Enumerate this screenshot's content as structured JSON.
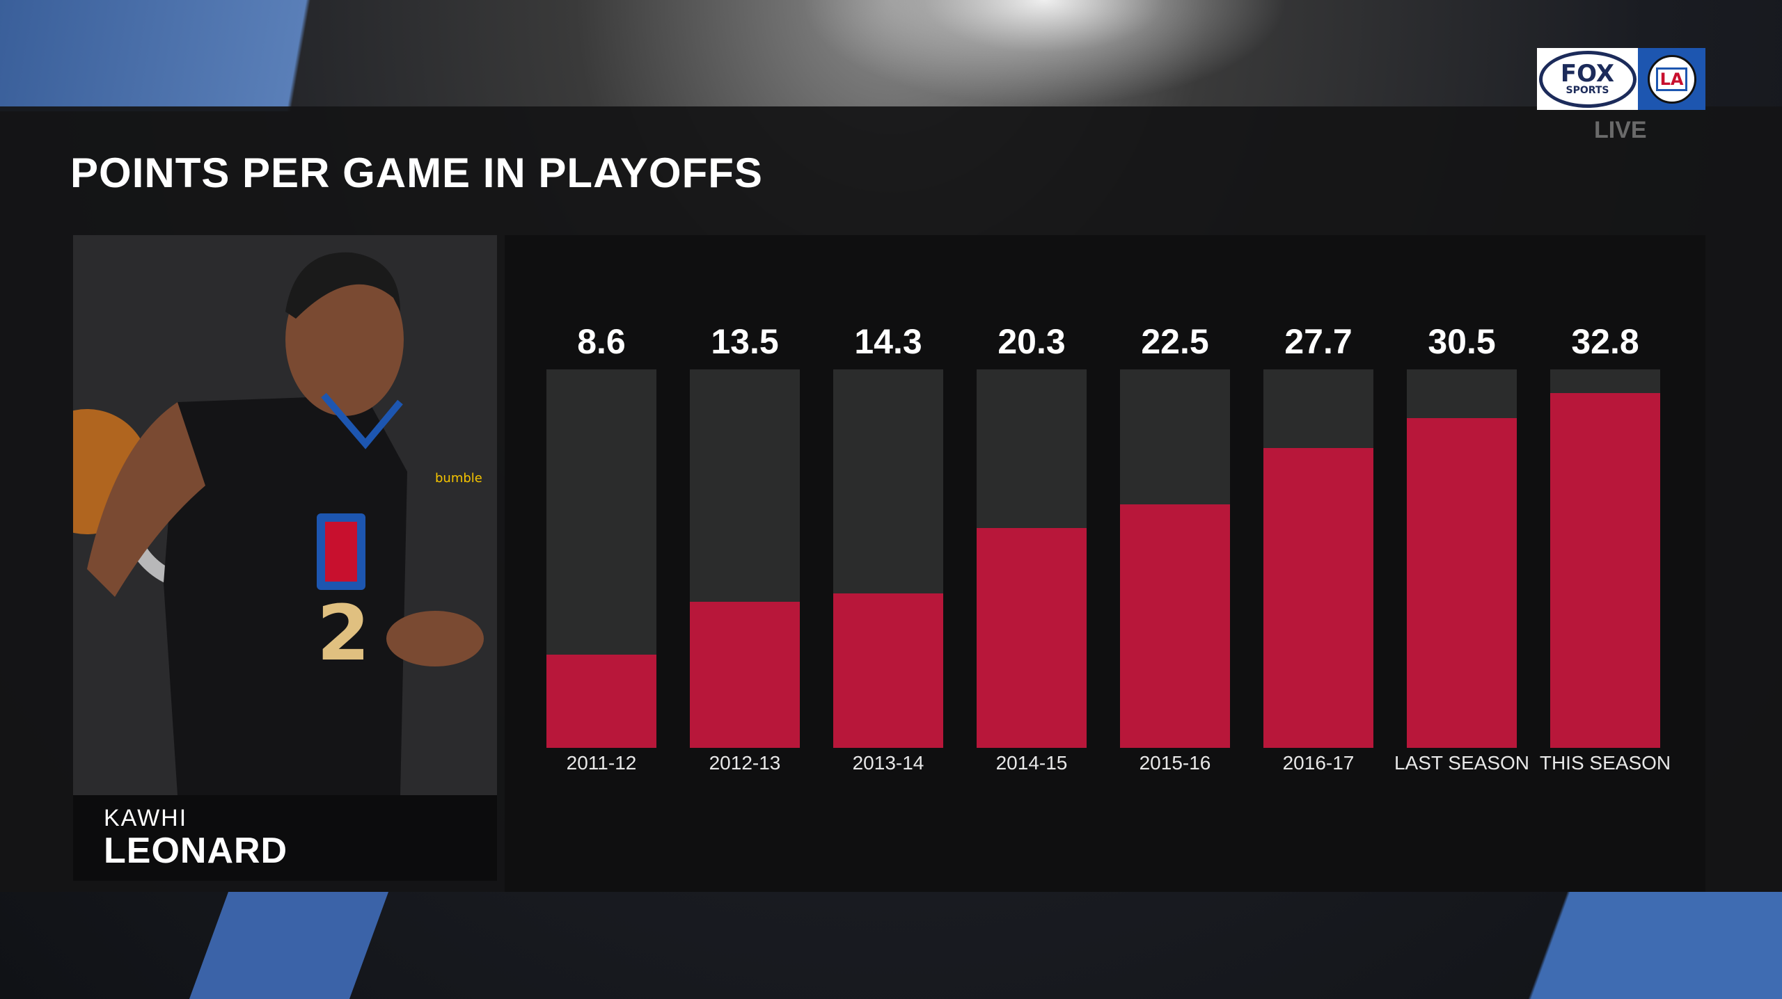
{
  "header": {
    "title": "POINTS PER GAME IN PLAYOFFS",
    "live_label": "LIVE"
  },
  "logos": {
    "network": "FOX",
    "network_sub": "SPORTS",
    "team": "LA"
  },
  "player": {
    "first_name": "KAWHI",
    "last_name": "LEONARD",
    "jersey_number": "2"
  },
  "colors": {
    "bar_fill": "#b8173a",
    "bar_track": "#2b2c2c",
    "team_blue": "#1d56b0"
  },
  "chart_data": {
    "type": "bar",
    "title": "POINTS PER GAME IN PLAYOFFS",
    "categories": [
      "2011-12",
      "2012-13",
      "2013-14",
      "2014-15",
      "2015-16",
      "2016-17",
      "LAST SEASON",
      "THIS SEASON"
    ],
    "values": [
      8.6,
      13.5,
      14.3,
      20.3,
      22.5,
      27.7,
      30.5,
      32.8
    ],
    "value_labels": [
      "8.6",
      "13.5",
      "14.3",
      "20.3",
      "22.5",
      "27.7",
      "30.5",
      "32.8"
    ],
    "xlabel": "",
    "ylabel": "",
    "ylim": [
      0,
      35
    ],
    "grid": false
  }
}
